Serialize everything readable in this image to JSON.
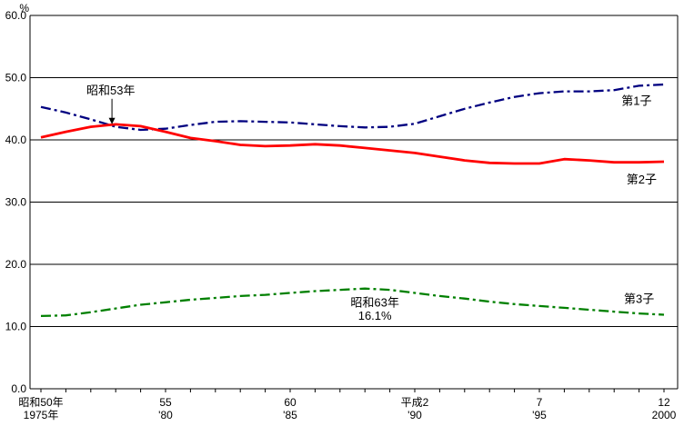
{
  "chart_data": {
    "type": "line",
    "unit_label": "%",
    "x_start": 1975,
    "x_end": 2000,
    "ylim": [
      0,
      60
    ],
    "grid": "horizontal-only",
    "y_ticks": [
      {
        "value": 60,
        "label": "60.0"
      },
      {
        "value": 50,
        "label": "50.0"
      },
      {
        "value": 40,
        "label": "40.0"
      },
      {
        "value": 30,
        "label": "30.0"
      },
      {
        "value": 20,
        "label": "20.0"
      },
      {
        "value": 10,
        "label": "10.0"
      },
      {
        "value": 0,
        "label": "0.0"
      }
    ],
    "x_ticks": [
      {
        "year": 1975,
        "era_label": "昭和50年",
        "west_label": "1975年"
      },
      {
        "year": 1980,
        "era_label": "55",
        "west_label": "'80"
      },
      {
        "year": 1985,
        "era_label": "60",
        "west_label": "'85"
      },
      {
        "year": 1990,
        "era_label": "平成2",
        "west_label": "'90"
      },
      {
        "year": 1995,
        "era_label": "7",
        "west_label": "'95"
      },
      {
        "year": 2000,
        "era_label": "12",
        "west_label": "2000"
      }
    ],
    "series": [
      {
        "key": "first-child",
        "name": "第1子",
        "color": "#000080",
        "style": "dash-dot",
        "label_anchor": {
          "year": 1998.9,
          "value": 46.2
        },
        "values": [
          45.3,
          44.4,
          43.3,
          42.1,
          41.6,
          41.8,
          42.4,
          42.9,
          43.0,
          42.9,
          42.8,
          42.5,
          42.2,
          42.0,
          42.1,
          42.6,
          43.8,
          45.0,
          46.0,
          46.9,
          47.5,
          47.8,
          47.8,
          48.0,
          48.7,
          48.9
        ]
      },
      {
        "key": "second-child",
        "name": "第2子",
        "color": "#ff0000",
        "style": "solid",
        "label_anchor": {
          "year": 1999.1,
          "value": 33.6
        },
        "values": [
          40.4,
          41.3,
          42.1,
          42.5,
          42.2,
          41.3,
          40.3,
          39.8,
          39.2,
          39.0,
          39.1,
          39.3,
          39.1,
          38.7,
          38.3,
          37.9,
          37.3,
          36.7,
          36.3,
          36.2,
          36.2,
          36.9,
          36.7,
          36.4,
          36.4,
          36.5
        ]
      },
      {
        "key": "third-child",
        "name": "第3子",
        "color": "#008000",
        "style": "dash-dot",
        "label_anchor": {
          "year": 1999.0,
          "value": 14.4
        },
        "values": [
          11.7,
          11.8,
          12.3,
          12.9,
          13.5,
          13.9,
          14.3,
          14.6,
          14.9,
          15.1,
          15.4,
          15.7,
          15.9,
          16.1,
          15.9,
          15.4,
          14.9,
          14.5,
          14.0,
          13.6,
          13.3,
          13.0,
          12.7,
          12.4,
          12.1,
          11.9
        ]
      }
    ],
    "annotations": [
      {
        "id": "showa53",
        "text": "昭和53年",
        "year": 1977.8,
        "value": 47.9,
        "arrow": {
          "year": 1977.85,
          "from_value": 46.6,
          "to_value": 43.4
        }
      },
      {
        "id": "showa63",
        "lines": [
          "昭和63年",
          "16.1%"
        ],
        "year": 1988.4,
        "line_values": [
          13.8,
          11.7
        ]
      }
    ]
  }
}
